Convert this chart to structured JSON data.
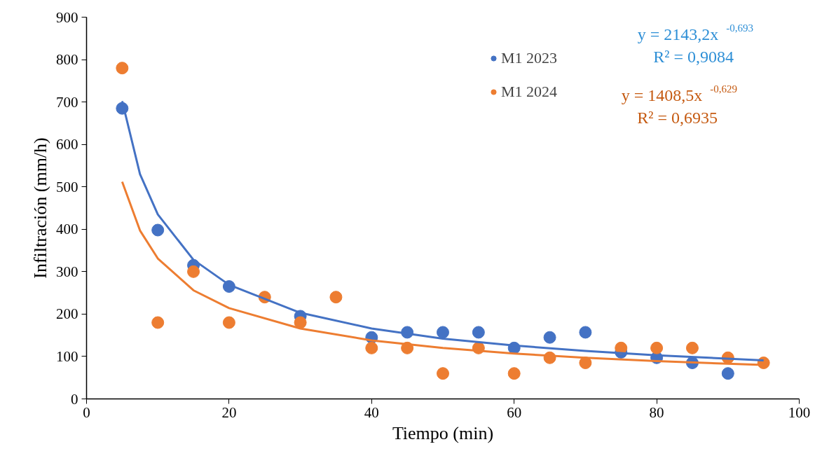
{
  "chart_data": {
    "type": "scatter",
    "xlabel": "Tiempo (min)",
    "ylabel": "Infiltración (mm/h)",
    "x": [
      5,
      10,
      15,
      20,
      25,
      30,
      35,
      40,
      45,
      50,
      55,
      60,
      65,
      70,
      75,
      80,
      85,
      90,
      95
    ],
    "series": [
      {
        "name": "M1 2023",
        "color": "#4472c4",
        "values": [
          685,
          398,
          315,
          265,
          null,
          195,
          null,
          145,
          157,
          157,
          157,
          120,
          145,
          157,
          110,
          97,
          85,
          60,
          null
        ]
      },
      {
        "name": "M1 2024",
        "color": "#ed7d31",
        "values": [
          780,
          180,
          300,
          180,
          240,
          180,
          240,
          120,
          120,
          60,
          120,
          60,
          97,
          85,
          120,
          120,
          120,
          97,
          85
        ]
      },
      {
        "type": "line",
        "marker": "none",
        "color": "#4472c4",
        "x": [
          5,
          7.5,
          10,
          15,
          20,
          30,
          40,
          50,
          60,
          70,
          80,
          95
        ],
        "values": [
          702,
          530,
          435,
          328,
          269,
          203,
          166,
          142,
          126,
          113,
          103,
          91
        ]
      },
      {
        "type": "line",
        "marker": "none",
        "color": "#ed7d31",
        "x": [
          5,
          7.5,
          10,
          15,
          20,
          30,
          40,
          50,
          60,
          70,
          80,
          95
        ],
        "values": [
          512,
          397,
          331,
          256,
          214,
          166,
          138,
          120,
          107,
          97,
          89,
          80
        ]
      }
    ],
    "annotations": [
      "y = 2143,2x$^{-0,693}$",
      "R² = 0,9084",
      "y = 1408,5x$^{-0,629}$",
      "R² = 0,6935"
    ],
    "xlim": [
      0,
      100
    ],
    "xticks": [
      0,
      20,
      40,
      60,
      80,
      100
    ],
    "ylim": [
      0,
      900
    ],
    "yticks": [
      0,
      100,
      200,
      300,
      400,
      500,
      600,
      700,
      800,
      900
    ],
    "grid": false,
    "legend": "top",
    "marker": "circle",
    "line_style": "solid"
  }
}
